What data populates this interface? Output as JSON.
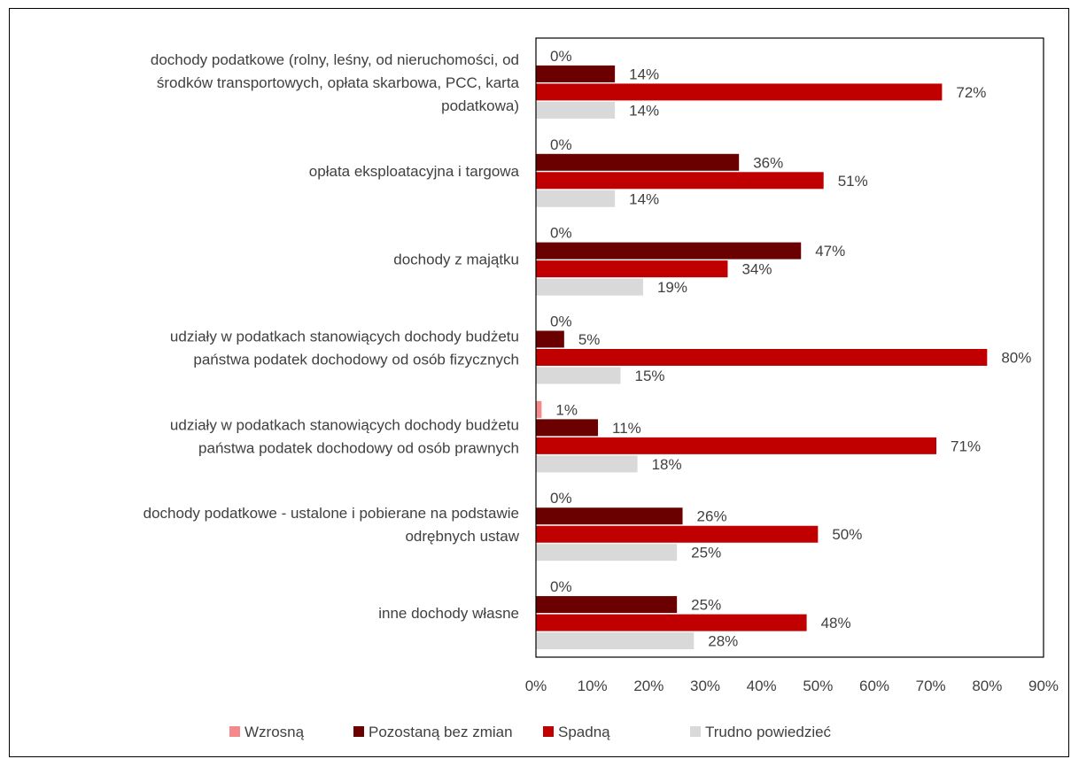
{
  "chart_data": {
    "type": "bar",
    "orientation": "horizontal",
    "categories": [
      [
        "dochody podatkowe (rolny, leśny, od nieruchomości, od",
        "środków transportowych, opłata skarbowa, PCC, karta",
        "podatkowa)"
      ],
      [
        "opłata eksploatacyjna i targowa"
      ],
      [
        "dochody z majątku"
      ],
      [
        "udziały w podatkach stanowiących dochody budżetu",
        "państwa podatek dochodowy od osób fizycznych"
      ],
      [
        "udziały w podatkach stanowiących dochody budżetu",
        "państwa podatek dochodowy od osób prawnych"
      ],
      [
        "dochody podatkowe - ustalone i pobierane na podstawie",
        "odrębnych ustaw"
      ],
      [
        "inne dochody własne"
      ]
    ],
    "series": [
      {
        "name": "Wzrosną",
        "color": "#f4888a",
        "values": [
          0,
          0,
          0,
          0,
          1,
          0,
          0
        ],
        "labels": [
          "0%",
          "0%",
          "0%",
          "0%",
          "1%",
          "0%",
          "0%"
        ]
      },
      {
        "name": "Pozostaną bez zmian",
        "color": "#6b0000",
        "values": [
          14,
          36,
          47,
          5,
          11,
          26,
          25
        ],
        "labels": [
          "14%",
          "36%",
          "47%",
          "5%",
          "11%",
          "26%",
          "25%"
        ]
      },
      {
        "name": "Spadną",
        "color": "#c00000",
        "values": [
          72,
          51,
          34,
          80,
          71,
          50,
          48
        ],
        "labels": [
          "72%",
          "51%",
          "34%",
          "80%",
          "71%",
          "50%",
          "48%"
        ]
      },
      {
        "name": "Trudno powiedzieć",
        "color": "#d9d9d9",
        "values": [
          14,
          14,
          19,
          15,
          18,
          25,
          28
        ],
        "labels": [
          "14%",
          "14%",
          "19%",
          "15%",
          "18%",
          "25%",
          "28%"
        ]
      }
    ],
    "xlim": [
      0,
      90
    ],
    "xticks": [
      "0%",
      "10%",
      "20%",
      "30%",
      "40%",
      "50%",
      "60%",
      "70%",
      "80%",
      "90%"
    ],
    "title": "",
    "xlabel": "",
    "ylabel": "",
    "grid": false,
    "legend_position": "bottom",
    "text_color": "#404040"
  }
}
